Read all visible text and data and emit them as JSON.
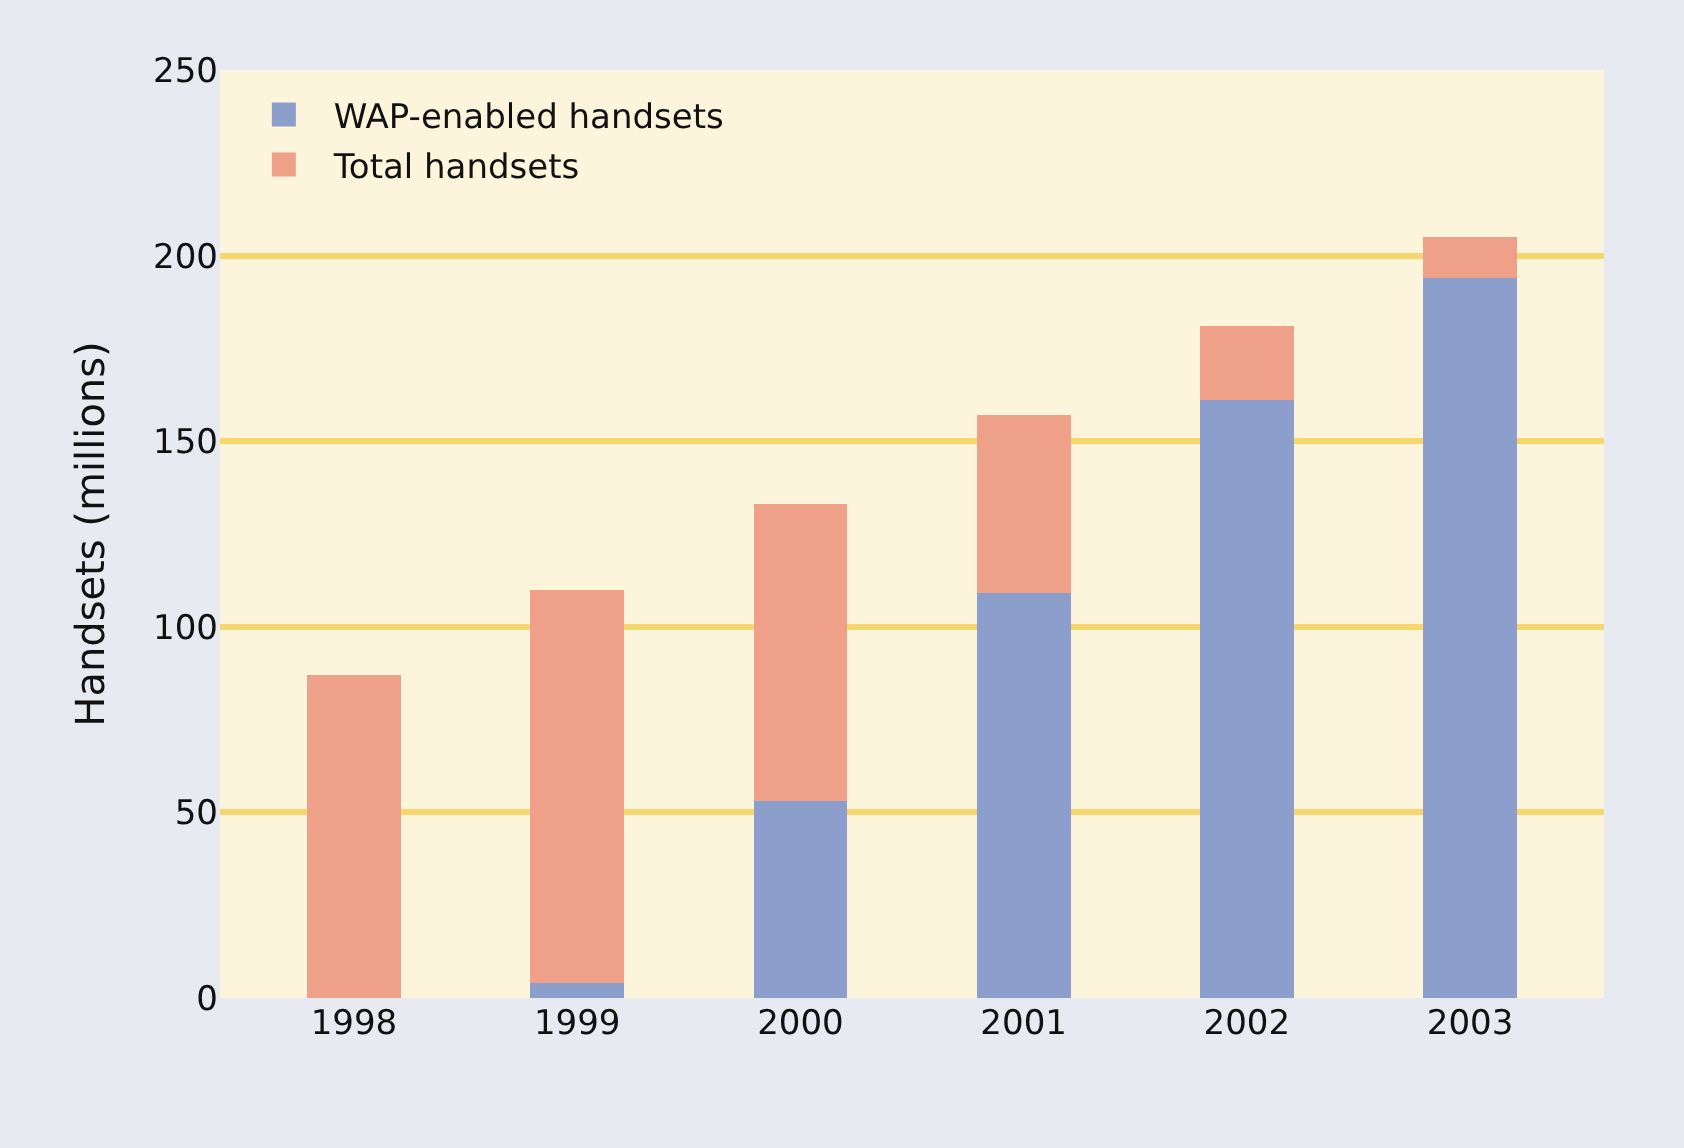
{
  "chart_data": {
    "type": "bar",
    "stacked": true,
    "ylabel": "Handsets (millions)",
    "categories": [
      "1998",
      "1999",
      "2000",
      "2001",
      "2002",
      "2003"
    ],
    "series": [
      {
        "name": "WAP-enabled handsets",
        "color": "#8c9fcc",
        "values": [
          0,
          4,
          53,
          109,
          161,
          194
        ]
      },
      {
        "name": "Total handsets",
        "color": "#efa088",
        "values": [
          87,
          106,
          80,
          48,
          20,
          11
        ]
      }
    ],
    "ylim": [
      0,
      250
    ],
    "yticks": [
      0,
      50,
      100,
      150,
      200,
      250
    ],
    "grid": "y",
    "legend": "top left"
  }
}
